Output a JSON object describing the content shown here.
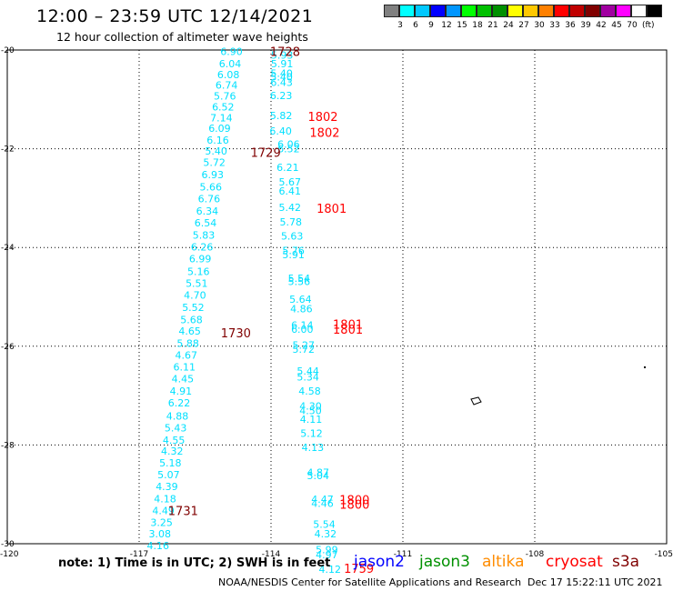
{
  "header": {
    "title": "12:00 – 23:59 UTC 12/14/2021",
    "subtitle": "12 hour collection of altimeter wave heights"
  },
  "legend": {
    "colors": [
      "#808080",
      "#00ffff",
      "#00c8ff",
      "#0000ff",
      "#0096ff",
      "#00ff00",
      "#00c000",
      "#009000",
      "#ffff00",
      "#ffc800",
      "#ff8000",
      "#ff0000",
      "#c00000",
      "#800000",
      "#a000a0",
      "#ff00ff",
      "#ffffff",
      "#000000"
    ],
    "labels": [
      "3",
      "6",
      "9",
      "12",
      "15",
      "18",
      "21",
      "24",
      "27",
      "30",
      "33",
      "36",
      "39",
      "42",
      "45",
      "70"
    ],
    "unit": "(ft)"
  },
  "footer": {
    "note": "note:  1) Time is in UTC;  2) SWH is in feet",
    "satellites": [
      {
        "name": "jason2",
        "color": "#0000ff"
      },
      {
        "name": "jason3",
        "color": "#009000"
      },
      {
        "name": "altika",
        "color": "#ff8c00"
      },
      {
        "name": "cryosat",
        "color": "#ff0000"
      },
      {
        "name": "s3a",
        "color": "#800000"
      }
    ],
    "credit": "NOAA/NESDIS Center for Satellite Applications and Research",
    "timestamp": "Dec 17 15:22:11 UTC 2021"
  },
  "chart_data": {
    "type": "scatter",
    "title": "12:00 – 23:59 UTC 12/14/2021",
    "subtitle": "12 hour collection of altimeter wave heights",
    "xlim": [
      -120,
      -105
    ],
    "ylim": [
      -30,
      -20
    ],
    "xticks": [
      "-120",
      "-117",
      "-114",
      "-111",
      "-108",
      "-105"
    ],
    "yticks": [
      "-20",
      "-22",
      "-24",
      "-26",
      "-28",
      "-30"
    ],
    "grid": true,
    "color": "#00e0ff",
    "series": [
      {
        "name": "track-west",
        "points": [
          {
            "x": -114.9,
            "y": -20.03,
            "v": "6.90"
          },
          {
            "x": -114.93,
            "y": -20.28,
            "v": "6.04"
          },
          {
            "x": -114.97,
            "y": -20.5,
            "v": "6.08"
          },
          {
            "x": -115.01,
            "y": -20.71,
            "v": "6.74"
          },
          {
            "x": -115.05,
            "y": -20.93,
            "v": "5.76"
          },
          {
            "x": -115.09,
            "y": -21.15,
            "v": "6.52"
          },
          {
            "x": -115.13,
            "y": -21.37,
            "v": "7.14"
          },
          {
            "x": -115.17,
            "y": -21.58,
            "v": "6.09"
          },
          {
            "x": -115.21,
            "y": -21.82,
            "v": "6.16"
          },
          {
            "x": -115.25,
            "y": -22.04,
            "v": "5.40"
          },
          {
            "x": -115.29,
            "y": -22.27,
            "v": "5.72"
          },
          {
            "x": -115.33,
            "y": -22.52,
            "v": "6.93"
          },
          {
            "x": -115.37,
            "y": -22.77,
            "v": "5.66"
          },
          {
            "x": -115.41,
            "y": -23.01,
            "v": "6.76"
          },
          {
            "x": -115.45,
            "y": -23.26,
            "v": "6.34"
          },
          {
            "x": -115.49,
            "y": -23.5,
            "v": "6.54"
          },
          {
            "x": -115.53,
            "y": -23.75,
            "v": "5.83"
          },
          {
            "x": -115.57,
            "y": -23.99,
            "v": "6.26"
          },
          {
            "x": -115.61,
            "y": -24.23,
            "v": "6.99"
          },
          {
            "x": -115.65,
            "y": -24.48,
            "v": "5.16"
          },
          {
            "x": -115.69,
            "y": -24.72,
            "v": "5.51"
          },
          {
            "x": -115.73,
            "y": -24.96,
            "v": "4.70"
          },
          {
            "x": -115.77,
            "y": -25.21,
            "v": "5.52"
          },
          {
            "x": -115.81,
            "y": -25.46,
            "v": "5.68"
          },
          {
            "x": -115.85,
            "y": -25.69,
            "v": "4.65"
          },
          {
            "x": -115.89,
            "y": -25.94,
            "v": "5.88"
          },
          {
            "x": -115.93,
            "y": -26.18,
            "v": "4.67"
          },
          {
            "x": -115.97,
            "y": -26.42,
            "v": "6.11"
          },
          {
            "x": -116.01,
            "y": -26.66,
            "v": "4.45"
          },
          {
            "x": -116.05,
            "y": -26.91,
            "v": "4.91"
          },
          {
            "x": -116.09,
            "y": -27.15,
            "v": "6.22"
          },
          {
            "x": -116.13,
            "y": -27.41,
            "v": "4.88"
          },
          {
            "x": -116.17,
            "y": -27.65,
            "v": "5.43"
          },
          {
            "x": -116.21,
            "y": -27.9,
            "v": "4.55"
          },
          {
            "x": -116.25,
            "y": -28.12,
            "v": "4.32"
          },
          {
            "x": -116.29,
            "y": -28.36,
            "v": "5.18"
          },
          {
            "x": -116.33,
            "y": -28.6,
            "v": "5.07"
          },
          {
            "x": -116.37,
            "y": -28.84,
            "v": "4.39"
          },
          {
            "x": -116.41,
            "y": -29.09,
            "v": "4.18"
          },
          {
            "x": -116.45,
            "y": -29.33,
            "v": "4.49"
          },
          {
            "x": -116.49,
            "y": -29.57,
            "v": "3.25"
          },
          {
            "x": -116.53,
            "y": -29.8,
            "v": "3.08"
          },
          {
            "x": -116.57,
            "y": -30.04,
            "v": "4.16"
          }
        ]
      },
      {
        "name": "track-east",
        "points": [
          {
            "x": -113.75,
            "y": -20.1,
            "v": "5.93"
          },
          {
            "x": -113.75,
            "y": -20.28,
            "v": "5.91"
          },
          {
            "x": -113.76,
            "y": -20.47,
            "v": "5.40"
          },
          {
            "x": -113.76,
            "y": -20.54,
            "v": "5.40"
          },
          {
            "x": -113.76,
            "y": -20.65,
            "v": "6.43"
          },
          {
            "x": -113.77,
            "y": -20.92,
            "v": "6.23"
          },
          {
            "x": -113.77,
            "y": -21.33,
            "v": "5.82"
          },
          {
            "x": -113.78,
            "y": -21.64,
            "v": "6.40"
          },
          {
            "x": -113.6,
            "y": -21.91,
            "v": "6.06"
          },
          {
            "x": -113.6,
            "y": -22.0,
            "v": "6.52"
          },
          {
            "x": -113.62,
            "y": -22.38,
            "v": "6.21"
          },
          {
            "x": -113.57,
            "y": -22.67,
            "v": "5.67"
          },
          {
            "x": -113.57,
            "y": -22.85,
            "v": "6.41"
          },
          {
            "x": -113.57,
            "y": -23.19,
            "v": "5.42"
          },
          {
            "x": -113.55,
            "y": -23.48,
            "v": "5.78"
          },
          {
            "x": -113.52,
            "y": -23.77,
            "v": "5.63"
          },
          {
            "x": -113.49,
            "y": -24.06,
            "v": "5.76"
          },
          {
            "x": -113.49,
            "y": -24.14,
            "v": "5.91"
          },
          {
            "x": -113.36,
            "y": -24.62,
            "v": "5.54"
          },
          {
            "x": -113.36,
            "y": -24.69,
            "v": "5.56"
          },
          {
            "x": -113.33,
            "y": -25.05,
            "v": "5.64"
          },
          {
            "x": -113.31,
            "y": -25.24,
            "v": "4.86"
          },
          {
            "x": -113.29,
            "y": -25.57,
            "v": "6.14"
          },
          {
            "x": -113.29,
            "y": -25.65,
            "v": "6.00"
          },
          {
            "x": -113.26,
            "y": -25.98,
            "v": "5.27"
          },
          {
            "x": -113.26,
            "y": -26.06,
            "v": "5.72"
          },
          {
            "x": -113.16,
            "y": -26.5,
            "v": "5.44"
          },
          {
            "x": -113.16,
            "y": -26.62,
            "v": "5.34"
          },
          {
            "x": -113.12,
            "y": -26.91,
            "v": "4.58"
          },
          {
            "x": -113.1,
            "y": -27.21,
            "v": "4.30"
          },
          {
            "x": -113.1,
            "y": -27.3,
            "v": "4.50"
          },
          {
            "x": -113.09,
            "y": -27.48,
            "v": "4.11"
          },
          {
            "x": -113.08,
            "y": -27.76,
            "v": "5.12"
          },
          {
            "x": -113.05,
            "y": -28.05,
            "v": "4.13"
          },
          {
            "x": -112.93,
            "y": -28.55,
            "v": "4.87"
          },
          {
            "x": -112.93,
            "y": -28.62,
            "v": "5.04"
          },
          {
            "x": -112.83,
            "y": -29.1,
            "v": "4.47"
          },
          {
            "x": -112.83,
            "y": -29.18,
            "v": "4.46"
          },
          {
            "x": -112.79,
            "y": -29.6,
            "v": "5.54"
          },
          {
            "x": -112.76,
            "y": -29.8,
            "v": "4.32"
          },
          {
            "x": -112.73,
            "y": -30.12,
            "v": "5.99"
          },
          {
            "x": -112.73,
            "y": -30.22,
            "v": "4.97"
          },
          {
            "x": -112.66,
            "y": -30.52,
            "v": "4.12"
          }
        ]
      }
    ],
    "time_labels": [
      {
        "x": -113.68,
        "y": -20.03,
        "label": "1728",
        "color": "#800000"
      },
      {
        "x": -112.82,
        "y": -21.34,
        "label": "1802",
        "color": "#ff0000"
      },
      {
        "x": -112.78,
        "y": -21.67,
        "label": "1802",
        "color": "#ff0000"
      },
      {
        "x": -114.12,
        "y": -22.07,
        "label": "1729",
        "color": "#800000"
      },
      {
        "x": -112.62,
        "y": -23.2,
        "label": "1801",
        "color": "#ff0000"
      },
      {
        "x": -112.25,
        "y": -25.55,
        "label": "1801",
        "color": "#ff0000"
      },
      {
        "x": -112.25,
        "y": -25.65,
        "label": "1801",
        "color": "#ff0000"
      },
      {
        "x": -114.8,
        "y": -25.73,
        "label": "1730",
        "color": "#800000"
      },
      {
        "x": -112.1,
        "y": -29.11,
        "label": "1800",
        "color": "#ff0000"
      },
      {
        "x": -112.1,
        "y": -29.2,
        "label": "1800",
        "color": "#ff0000"
      },
      {
        "x": -116.0,
        "y": -29.33,
        "label": "1731",
        "color": "#800000"
      },
      {
        "x": -112.0,
        "y": -30.5,
        "label": "1759",
        "color": "#ff0000"
      }
    ]
  }
}
